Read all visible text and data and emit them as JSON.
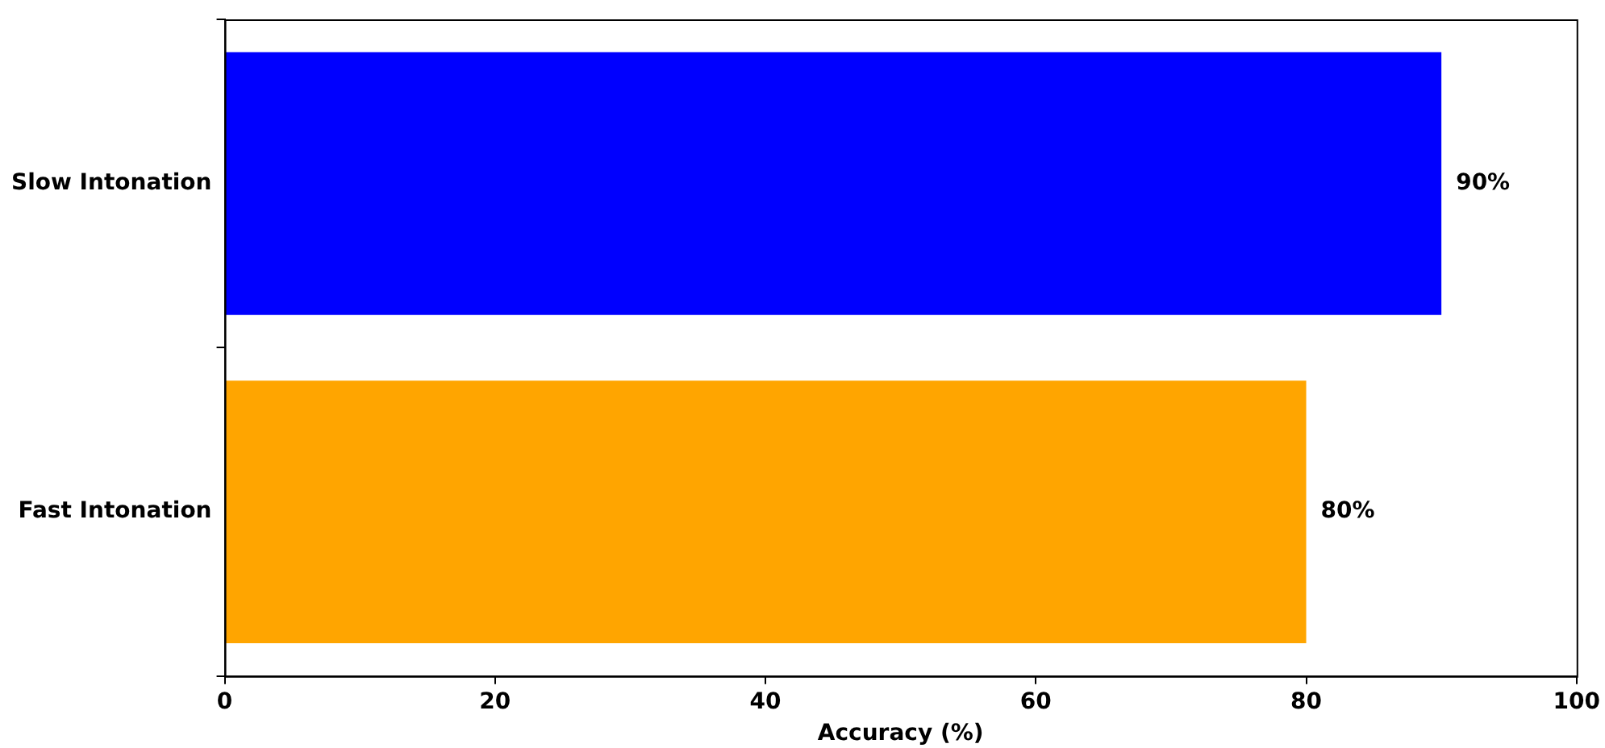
{
  "chart_data": {
    "type": "bar",
    "orientation": "horizontal",
    "xlabel": "Accuracy (%)",
    "categories": [
      "Slow Intonation",
      "Fast Intonation"
    ],
    "values": [
      90,
      80
    ],
    "colors": [
      "#0000ff",
      "#ffa500"
    ],
    "value_labels": [
      "90%",
      "80%"
    ],
    "xlim": [
      0,
      100
    ],
    "xticks": [
      0,
      20,
      40,
      60,
      80,
      100
    ],
    "grid": false,
    "legend": false
  }
}
